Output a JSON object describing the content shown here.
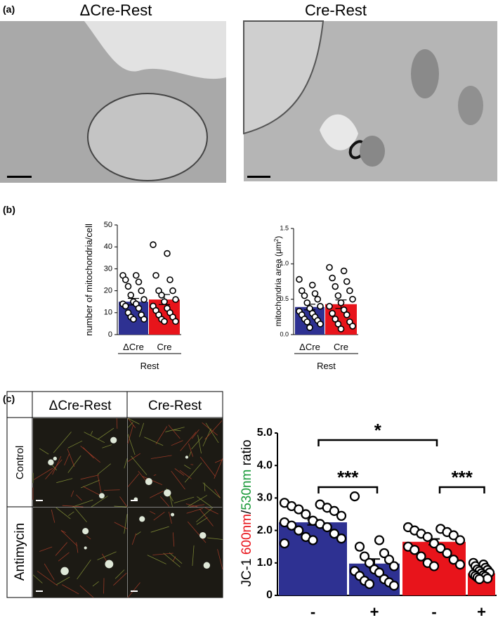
{
  "panel_labels": [
    "(a)",
    "(b)",
    "(c)"
  ],
  "em_titles": [
    "ΔCre-Rest",
    "Cre-Rest"
  ],
  "fluor_table": {
    "columns": [
      "ΔCre-Rest",
      "Cre-Rest"
    ],
    "rows": [
      "Control",
      "Antimycin"
    ]
  },
  "chart_data": [
    {
      "type": "bar",
      "ylabel": [
        "number of mitochondria/cell"
      ],
      "categories": [
        "ΔCre",
        "Cre"
      ],
      "group_label": "Rest",
      "values": [
        15,
        16
      ],
      "errors": [
        1.5,
        2.3
      ],
      "colors": [
        "#2e3192",
        "#e8141b"
      ],
      "points": [
        [
          27,
          27,
          25,
          24,
          22,
          20,
          18,
          16,
          15,
          14,
          14,
          13,
          12,
          10,
          9,
          8,
          7,
          7
        ],
        [
          41,
          37,
          27,
          25,
          20,
          20,
          18,
          16,
          15,
          13,
          12,
          11,
          10,
          9,
          8,
          7,
          6,
          6
        ]
      ],
      "ylim": [
        0,
        50
      ],
      "yticks": [
        0,
        10,
        20,
        30,
        40,
        50
      ]
    },
    {
      "type": "bar",
      "ylabel": [
        "mitochondria area (μm",
        "2",
        ")"
      ],
      "categories": [
        "ΔCre",
        "Cre"
      ],
      "group_label": "Rest",
      "values": [
        0.39,
        0.43
      ],
      "errors": [
        0.04,
        0.06
      ],
      "colors": [
        "#2e3192",
        "#e8141b"
      ],
      "points": [
        [
          0.78,
          0.7,
          0.62,
          0.58,
          0.55,
          0.5,
          0.45,
          0.4,
          0.37,
          0.33,
          0.3,
          0.28,
          0.25,
          0.22,
          0.2,
          0.18,
          0.15,
          0.1
        ],
        [
          0.95,
          0.9,
          0.8,
          0.75,
          0.68,
          0.62,
          0.55,
          0.5,
          0.45,
          0.4,
          0.35,
          0.3,
          0.28,
          0.22,
          0.18,
          0.15,
          0.12,
          0.08
        ]
      ],
      "ylim": [
        0,
        1.5
      ],
      "yticks": [
        {
          "value": 0,
          "label": "0.0"
        },
        {
          "value": 0.5,
          "label": "0.5"
        },
        {
          "value": 1,
          "label": "1.0"
        },
        {
          "value": 1.5,
          "label": "1.5"
        }
      ]
    },
    {
      "type": "bar",
      "ylabel": [
        "JC-1 ",
        "600nm",
        "/",
        "530nm",
        " ratio"
      ],
      "ylabel_colors": [
        "#000000",
        "#e8141b",
        "#000000",
        "#1a9a3a",
        "#000000"
      ],
      "categories": [
        "-",
        "+",
        "-",
        "+"
      ],
      "values": [
        2.25,
        0.98,
        1.65,
        0.68
      ],
      "errors": [
        0.08,
        0.14,
        0.09,
        0.04
      ],
      "colors": [
        "#2e3192",
        "#2e3192",
        "#e8141b",
        "#e8141b"
      ],
      "points": [
        [
          2.85,
          2.8,
          2.75,
          2.7,
          2.65,
          2.6,
          2.5,
          2.45,
          2.3,
          2.25,
          2.2,
          2.15,
          2.1,
          2.0,
          1.9,
          1.8,
          1.75,
          1.7,
          1.6
        ],
        [
          3.05,
          1.7,
          1.5,
          1.3,
          1.2,
          1.1,
          1.0,
          0.9,
          0.8,
          0.75,
          0.7,
          0.6,
          0.5,
          0.45,
          0.4,
          0.35,
          0.3
        ],
        [
          2.1,
          2.05,
          2.0,
          1.95,
          1.9,
          1.85,
          1.8,
          1.7,
          1.6,
          1.5,
          1.45,
          1.4,
          1.3,
          1.2,
          1.1,
          1.0,
          0.95,
          0.9
        ],
        [
          1.0,
          0.95,
          0.9,
          0.85,
          0.8,
          0.78,
          0.75,
          0.7,
          0.68,
          0.65,
          0.62,
          0.6,
          0.58,
          0.55,
          0.52,
          0.5
        ]
      ],
      "annotations": [
        {
          "text": "*",
          "bars": [
            0,
            2
          ]
        },
        {
          "text": "***",
          "bars": [
            0,
            1
          ]
        },
        {
          "text": "***",
          "bars": [
            2,
            3
          ]
        }
      ],
      "ylim": [
        0,
        5
      ],
      "yticks": [
        0,
        {
          "value": 1,
          "label": "1.0"
        },
        {
          "value": 2,
          "label": "2.0"
        },
        {
          "value": 3,
          "label": "3.0"
        },
        {
          "value": 4,
          "label": "4.0"
        },
        {
          "value": 5,
          "label": "5.0"
        }
      ]
    }
  ]
}
